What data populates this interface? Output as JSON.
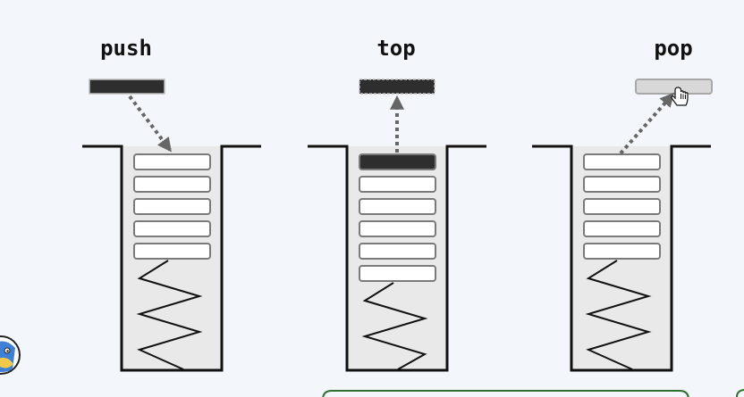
{
  "diagram": {
    "operations": [
      {
        "id": "push",
        "label": "push"
      },
      {
        "id": "top",
        "label": "top"
      },
      {
        "id": "pop",
        "label": "pop"
      }
    ]
  },
  "colors": {
    "background": "#f3f7fc",
    "stack_fill": "#e9e9e9",
    "outline": "#111111",
    "dark_item": "#2e2e2e",
    "light_item": "#d8d8d8",
    "arrow": "#666666",
    "panel_border": "#2f6f2f"
  },
  "icons": {
    "pointer": "hand-pointer-icon",
    "mascot": "mascot-icon"
  }
}
